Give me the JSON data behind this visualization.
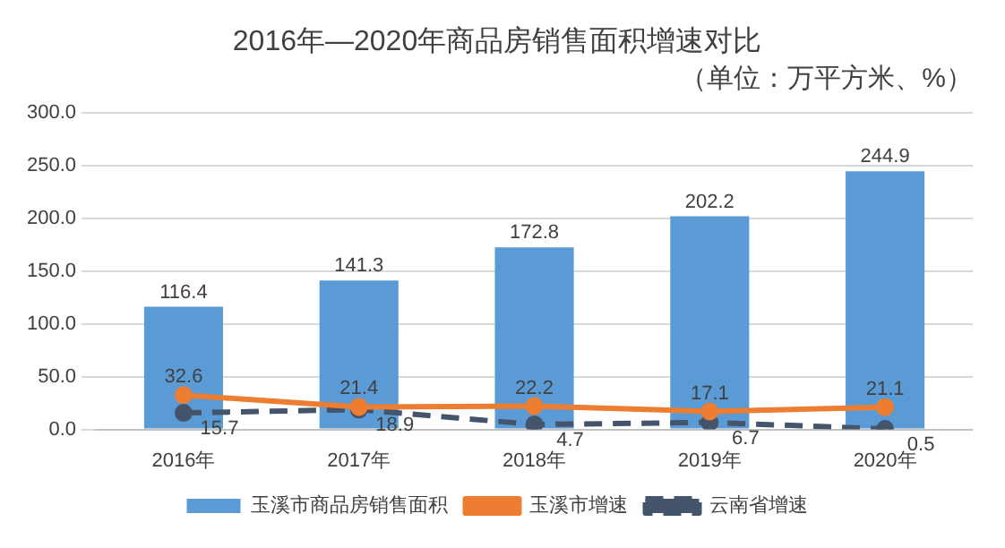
{
  "chart_data": {
    "type": "bar",
    "title": "2016年—2020年商品房销售面积增速对比",
    "subtitle": "（单位：万平方米、%）",
    "categories": [
      "2016年",
      "2017年",
      "2018年",
      "2019年",
      "2020年"
    ],
    "series": [
      {
        "name": "玉溪市商品房销售面积",
        "color": "#5b9bd5",
        "values": [
          116.4,
          141.3,
          172.8,
          202.2,
          244.9
        ]
      },
      {
        "name": "玉溪市增速",
        "type": "line",
        "color": "#ed7d31",
        "line_style": "solid",
        "values": [
          32.6,
          21.4,
          22.2,
          17.1,
          21.1
        ]
      },
      {
        "name": "云南省增速",
        "type": "line",
        "color": "#44546a",
        "line_style": "dashed",
        "values": [
          15.7,
          18.9,
          4.7,
          6.7,
          0.5
        ]
      }
    ],
    "ylim": [
      0,
      300
    ],
    "yticks": [
      {
        "value": 0,
        "label": "0.0"
      },
      {
        "value": 50,
        "label": "50.0"
      },
      {
        "value": 100,
        "label": "100.0"
      },
      {
        "value": 150,
        "label": "150.0"
      },
      {
        "value": 200,
        "label": "200.0"
      },
      {
        "value": 250,
        "label": "250.0"
      },
      {
        "value": 300,
        "label": "300.0"
      }
    ],
    "grid": "y",
    "legend": "bottom",
    "marker": "circle",
    "data_labels": true
  }
}
